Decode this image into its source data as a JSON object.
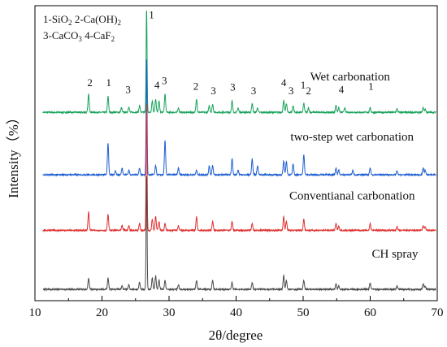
{
  "chart_data": {
    "type": "line",
    "title": "",
    "xlabel": "2θ/degree",
    "ylabel": "Intensity（%）",
    "xlim": [
      10,
      70
    ],
    "xticks": [
      10,
      20,
      30,
      40,
      50,
      60,
      70
    ],
    "grid": false,
    "legend_placement": "top-left",
    "legend_lines": [
      [
        {
          "t": "1-SiO"
        },
        {
          "t": "2",
          "sub": true
        },
        {
          "t": "    2-Ca(OH)"
        },
        {
          "t": "2",
          "sub": true
        }
      ],
      [
        {
          "t": "3-CaCO"
        },
        {
          "t": "3",
          "sub": true
        },
        {
          "t": "  4-CaF"
        },
        {
          "t": "2",
          "sub": true
        }
      ]
    ],
    "series": [
      {
        "name": "Wet carbonation",
        "color": "#1aa35c",
        "offset": 0.83,
        "peaks": [
          [
            18.0,
            0.08
          ],
          [
            20.9,
            0.07
          ],
          [
            22.9,
            0.02
          ],
          [
            24.0,
            0.025
          ],
          [
            25.6,
            0.03
          ],
          [
            26.65,
            0.46
          ],
          [
            27.5,
            0.05
          ],
          [
            28.0,
            0.06
          ],
          [
            28.5,
            0.05
          ],
          [
            29.4,
            0.08
          ],
          [
            31.4,
            0.02
          ],
          [
            34.1,
            0.06
          ],
          [
            36.0,
            0.03
          ],
          [
            36.5,
            0.035
          ],
          [
            39.4,
            0.05
          ],
          [
            40.3,
            0.02
          ],
          [
            42.4,
            0.04
          ],
          [
            43.2,
            0.02
          ],
          [
            47.1,
            0.05
          ],
          [
            47.5,
            0.04
          ],
          [
            48.5,
            0.03
          ],
          [
            50.1,
            0.04
          ],
          [
            50.8,
            0.02
          ],
          [
            54.9,
            0.03
          ],
          [
            55.3,
            0.02
          ],
          [
            56.2,
            0.02
          ],
          [
            60.0,
            0.02
          ],
          [
            64.0,
            0.015
          ],
          [
            67.9,
            0.02
          ],
          [
            68.2,
            0.015
          ]
        ]
      },
      {
        "name": "two-step wet carbonation",
        "color": "#1f5fd1",
        "offset": 0.555,
        "peaks": [
          [
            20.9,
            0.14
          ],
          [
            22.0,
            0.02
          ],
          [
            23.0,
            0.03
          ],
          [
            24.0,
            0.02
          ],
          [
            25.6,
            0.03
          ],
          [
            26.65,
            0.52
          ],
          [
            28.0,
            0.04
          ],
          [
            29.4,
            0.15
          ],
          [
            31.4,
            0.03
          ],
          [
            34.1,
            0.02
          ],
          [
            36.0,
            0.04
          ],
          [
            36.5,
            0.04
          ],
          [
            39.4,
            0.07
          ],
          [
            40.3,
            0.02
          ],
          [
            42.4,
            0.07
          ],
          [
            43.2,
            0.04
          ],
          [
            47.1,
            0.06
          ],
          [
            47.5,
            0.06
          ],
          [
            48.5,
            0.05
          ],
          [
            50.1,
            0.09
          ],
          [
            54.9,
            0.03
          ],
          [
            55.3,
            0.02
          ],
          [
            57.4,
            0.02
          ],
          [
            60.0,
            0.03
          ],
          [
            64.0,
            0.015
          ],
          [
            67.9,
            0.03
          ],
          [
            68.2,
            0.02
          ]
        ]
      },
      {
        "name": "Conventianal carbonation",
        "color": "#e03030",
        "offset": 0.31,
        "peaks": [
          [
            18.0,
            0.08
          ],
          [
            20.9,
            0.07
          ],
          [
            23.0,
            0.02
          ],
          [
            24.0,
            0.02
          ],
          [
            25.6,
            0.03
          ],
          [
            26.65,
            0.57
          ],
          [
            27.5,
            0.05
          ],
          [
            28.0,
            0.06
          ],
          [
            28.5,
            0.04
          ],
          [
            29.4,
            0.03
          ],
          [
            31.4,
            0.02
          ],
          [
            34.1,
            0.06
          ],
          [
            36.5,
            0.04
          ],
          [
            39.4,
            0.04
          ],
          [
            42.4,
            0.03
          ],
          [
            47.1,
            0.06
          ],
          [
            47.5,
            0.04
          ],
          [
            50.1,
            0.05
          ],
          [
            54.9,
            0.03
          ],
          [
            55.3,
            0.02
          ],
          [
            60.0,
            0.03
          ],
          [
            64.0,
            0.015
          ],
          [
            67.9,
            0.02
          ],
          [
            68.2,
            0.015
          ]
        ]
      },
      {
        "name": "CH spray",
        "color": "#4a4a4a",
        "offset": 0.05,
        "peaks": [
          [
            18.0,
            0.05
          ],
          [
            20.9,
            0.05
          ],
          [
            23.0,
            0.015
          ],
          [
            24.0,
            0.02
          ],
          [
            25.6,
            0.03
          ],
          [
            26.65,
            0.51
          ],
          [
            27.5,
            0.05
          ],
          [
            28.0,
            0.06
          ],
          [
            28.5,
            0.04
          ],
          [
            29.4,
            0.04
          ],
          [
            31.4,
            0.02
          ],
          [
            34.1,
            0.04
          ],
          [
            36.5,
            0.04
          ],
          [
            39.4,
            0.03
          ],
          [
            42.4,
            0.03
          ],
          [
            47.1,
            0.06
          ],
          [
            47.5,
            0.04
          ],
          [
            50.1,
            0.04
          ],
          [
            54.9,
            0.025
          ],
          [
            55.3,
            0.015
          ],
          [
            60.0,
            0.03
          ],
          [
            64.0,
            0.015
          ],
          [
            67.9,
            0.025
          ],
          [
            68.2,
            0.015
          ]
        ]
      }
    ],
    "series_labels": [
      {
        "text": "Wet carbonation",
        "x": 57.0,
        "y": 0.97
      },
      {
        "text": "two-step wet carbonation",
        "x": 57.3,
        "y": 0.705
      },
      {
        "text": "Conventianal carbonation",
        "x": 57.3,
        "y": 0.445
      },
      {
        "text": "CH spray",
        "x": 63.7,
        "y": 0.19
      }
    ],
    "annotations": [
      {
        "text": "1",
        "x": 27.4,
        "y": 1.245
      },
      {
        "text": "2",
        "x": 18.2,
        "y": 0.945
      },
      {
        "text": "1",
        "x": 21.0,
        "y": 0.945
      },
      {
        "text": "3",
        "x": 23.9,
        "y": 0.915
      },
      {
        "text": "4",
        "x": 28.2,
        "y": 0.935
      },
      {
        "text": "3",
        "x": 29.3,
        "y": 0.955
      },
      {
        "text": "2",
        "x": 34.0,
        "y": 0.93
      },
      {
        "text": "3",
        "x": 36.6,
        "y": 0.91
      },
      {
        "text": "3",
        "x": 39.5,
        "y": 0.925
      },
      {
        "text": "3",
        "x": 42.6,
        "y": 0.91
      },
      {
        "text": "4",
        "x": 47.1,
        "y": 0.945
      },
      {
        "text": "3",
        "x": 48.2,
        "y": 0.91
      },
      {
        "text": "1",
        "x": 50.0,
        "y": 0.935
      },
      {
        "text": "2",
        "x": 50.8,
        "y": 0.91
      },
      {
        "text": "4",
        "x": 55.7,
        "y": 0.915
      },
      {
        "text": "1",
        "x": 60.1,
        "y": 0.93
      }
    ]
  }
}
